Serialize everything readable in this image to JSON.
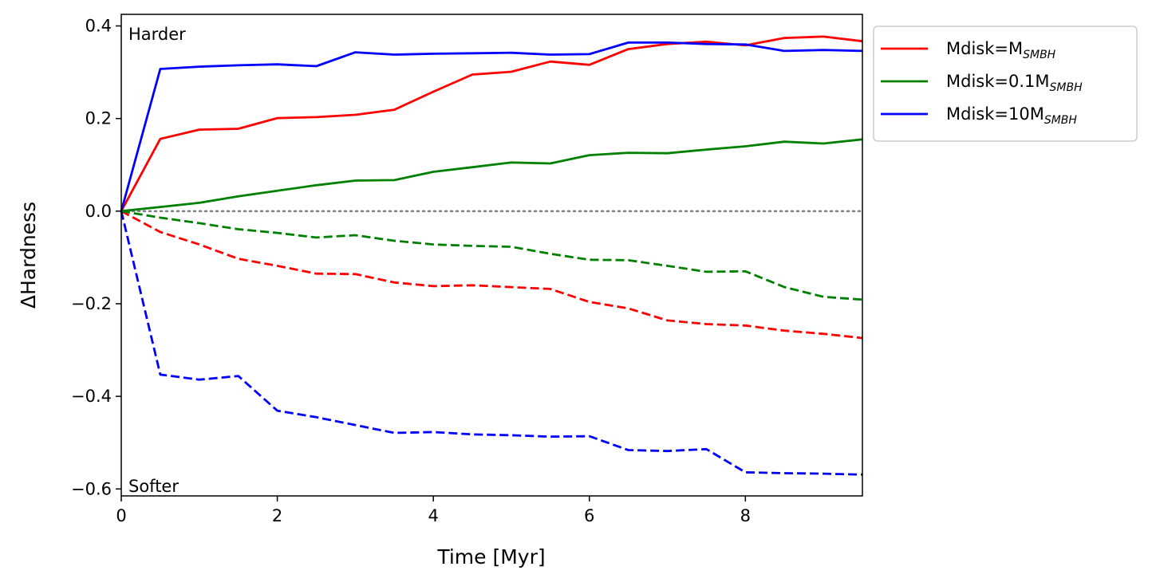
{
  "chart_data": {
    "type": "line",
    "xlabel": "Time [Myr]",
    "ylabel": "ΔHardness",
    "xlim": [
      0,
      9.5
    ],
    "ylim": [
      -0.615,
      0.425
    ],
    "xticks": [
      0,
      2,
      4,
      6,
      8
    ],
    "xtick_labels": [
      "0",
      "2",
      "4",
      "6",
      "8"
    ],
    "yticks": [
      0.4,
      0.2,
      0.0,
      -0.2,
      -0.4,
      -0.6
    ],
    "ytick_labels": [
      "0.4",
      "0.2",
      "0.0",
      "−0.2",
      "−0.4",
      "−0.6"
    ],
    "grid": false,
    "legend_position": "outside-upper-right",
    "annotations": [
      {
        "text": "Harder",
        "position": "top-left"
      },
      {
        "text": "Softer",
        "position": "bottom-left"
      }
    ],
    "reference_line": {
      "y": 0.0,
      "style": "dotted",
      "color": "#808080"
    },
    "x": [
      0,
      0.5,
      1,
      1.5,
      2,
      2.5,
      3,
      3.5,
      4,
      4.5,
      5,
      5.5,
      6,
      6.5,
      7,
      7.5,
      8,
      8.5,
      9,
      9.5
    ],
    "series": [
      {
        "name_main": "Mdisk=M",
        "name_sub": "SMBH",
        "legend": true,
        "color": "#ff0000",
        "dash": "solid",
        "values": [
          0.0,
          0.156,
          0.176,
          0.178,
          0.201,
          0.203,
          0.208,
          0.219,
          0.258,
          0.295,
          0.301,
          0.323,
          0.316,
          0.35,
          0.361,
          0.366,
          0.358,
          0.374,
          0.377,
          0.367
        ]
      },
      {
        "name_main": "Mdisk=0.1M",
        "name_sub": "SMBH",
        "legend": true,
        "color": "#008000",
        "dash": "solid",
        "values": [
          0.0,
          0.009,
          0.018,
          0.032,
          0.044,
          0.056,
          0.066,
          0.067,
          0.085,
          0.095,
          0.105,
          0.103,
          0.121,
          0.126,
          0.125,
          0.133,
          0.14,
          0.15,
          0.146,
          0.155
        ]
      },
      {
        "name_main": "Mdisk=10M",
        "name_sub": "SMBH",
        "legend": true,
        "color": "#0000ff",
        "dash": "solid",
        "values": [
          0.0,
          0.307,
          0.312,
          0.315,
          0.317,
          0.313,
          0.343,
          0.338,
          0.34,
          0.341,
          0.342,
          0.338,
          0.339,
          0.364,
          0.364,
          0.361,
          0.36,
          0.346,
          0.348,
          0.346
        ]
      },
      {
        "legend": false,
        "color": "#ff0000",
        "dash": "dashed",
        "values": [
          0.0,
          -0.045,
          -0.072,
          -0.103,
          -0.118,
          -0.135,
          -0.136,
          -0.154,
          -0.162,
          -0.16,
          -0.164,
          -0.168,
          -0.196,
          -0.21,
          -0.236,
          -0.244,
          -0.247,
          -0.258,
          -0.265,
          -0.274
        ]
      },
      {
        "legend": false,
        "color": "#008000",
        "dash": "dashed",
        "values": [
          0.0,
          -0.014,
          -0.026,
          -0.039,
          -0.047,
          -0.057,
          -0.052,
          -0.064,
          -0.072,
          -0.075,
          -0.077,
          -0.092,
          -0.105,
          -0.106,
          -0.118,
          -0.131,
          -0.13,
          -0.164,
          -0.185,
          -0.191
        ]
      },
      {
        "legend": false,
        "color": "#0000ff",
        "dash": "dashed",
        "values": [
          0.0,
          -0.353,
          -0.364,
          -0.356,
          -0.431,
          -0.445,
          -0.462,
          -0.479,
          -0.477,
          -0.482,
          -0.484,
          -0.487,
          -0.486,
          -0.516,
          -0.518,
          -0.514,
          -0.564,
          -0.566,
          -0.567,
          -0.569
        ]
      }
    ]
  }
}
